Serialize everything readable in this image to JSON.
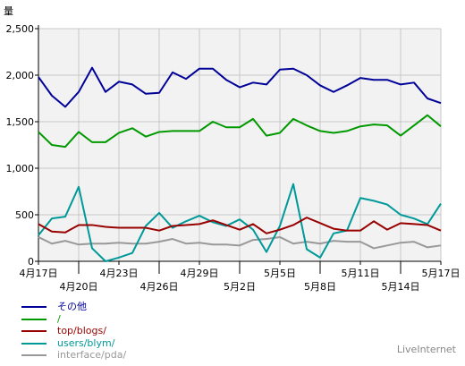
{
  "chart_data": {
    "type": "line",
    "ylabel": "量",
    "ylim": [
      0,
      2500
    ],
    "yticks": [
      0,
      500,
      1000,
      1500,
      2000,
      2500
    ],
    "ytick_labels": [
      "0",
      "500",
      "1,000",
      "1,500",
      "2,000",
      "2,500"
    ],
    "x_tick_labels_upper": [
      "4月17日",
      "4月23日",
      "4月29日",
      "5月5日",
      "5月11日",
      "5月17日"
    ],
    "x_tick_labels_lower": [
      "4月20日",
      "4月26日",
      "5月2日",
      "5月8日",
      "5月14日"
    ],
    "grid": true,
    "legend_position": "bottom-left",
    "series": [
      {
        "name": "その他",
        "color": "#000099",
        "values": [
          1980,
          1780,
          1660,
          1820,
          2080,
          1820,
          1930,
          1900,
          1800,
          1810,
          2030,
          1960,
          2070,
          2070,
          1950,
          1870,
          1920,
          1900,
          2060,
          2070,
          2000,
          1890,
          1820,
          1890,
          1970,
          1950,
          1950,
          1900,
          1920,
          1750,
          1700
        ]
      },
      {
        "name": "/",
        "color": "#009900",
        "values": [
          1390,
          1250,
          1230,
          1390,
          1280,
          1280,
          1380,
          1430,
          1340,
          1390,
          1400,
          1400,
          1400,
          1500,
          1440,
          1440,
          1530,
          1350,
          1380,
          1530,
          1460,
          1400,
          1380,
          1400,
          1450,
          1470,
          1460,
          1350,
          1460,
          1570,
          1450
        ]
      },
      {
        "name": "top/blogs/",
        "color": "#990000",
        "values": [
          400,
          320,
          310,
          390,
          390,
          370,
          360,
          360,
          360,
          330,
          380,
          390,
          400,
          440,
          390,
          340,
          400,
          300,
          340,
          390,
          470,
          410,
          350,
          330,
          330,
          430,
          340,
          410,
          400,
          390,
          330
        ]
      },
      {
        "name": "users/blym/",
        "color": "#009999",
        "values": [
          280,
          460,
          480,
          800,
          140,
          0,
          40,
          90,
          380,
          520,
          360,
          430,
          490,
          420,
          380,
          450,
          340,
          100,
          380,
          830,
          130,
          40,
          300,
          330,
          680,
          650,
          610,
          500,
          460,
          400,
          620
        ]
      },
      {
        "name": "interface/pda/",
        "color": "#999999",
        "values": [
          260,
          190,
          220,
          180,
          190,
          190,
          200,
          190,
          190,
          210,
          240,
          190,
          200,
          180,
          180,
          170,
          230,
          240,
          260,
          190,
          210,
          190,
          220,
          210,
          210,
          140,
          170,
          200,
          210,
          150,
          170
        ]
      }
    ]
  },
  "watermark": "LiveInternet"
}
